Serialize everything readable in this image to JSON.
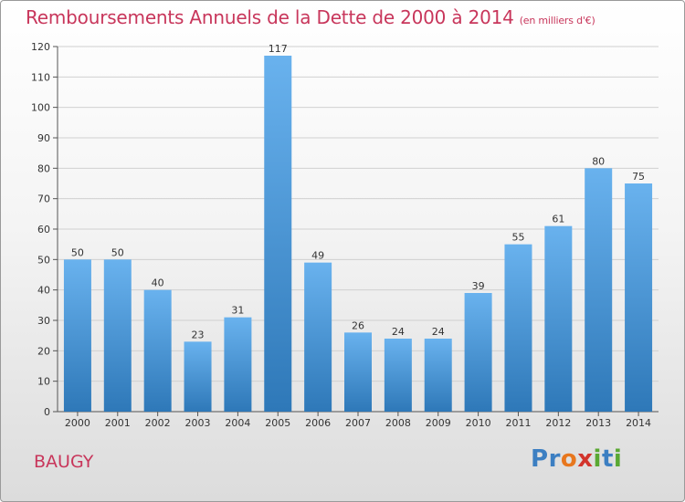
{
  "title": "Remboursements Annuels de la Dette de 2000 à 2014",
  "unit_note": "(en milliers d'€)",
  "place": "BAUGY",
  "brand": {
    "letters": [
      {
        "ch": "P",
        "color": "#3c7fc2"
      },
      {
        "ch": "r",
        "color": "#3c7fc2"
      },
      {
        "ch": "o",
        "color": "#e8771e"
      },
      {
        "ch": "x",
        "color": "#d2342c"
      },
      {
        "ch": "i",
        "color": "#5aa833"
      },
      {
        "ch": "t",
        "color": "#3c7fc2"
      },
      {
        "ch": "i",
        "color": "#5aa833"
      }
    ]
  },
  "chart_data": {
    "type": "bar",
    "categories": [
      "2000",
      "2001",
      "2002",
      "2003",
      "2004",
      "2005",
      "2006",
      "2007",
      "2008",
      "2009",
      "2010",
      "2011",
      "2012",
      "2013",
      "2014"
    ],
    "values": [
      50,
      50,
      40,
      23,
      31,
      117,
      49,
      26,
      24,
      24,
      39,
      55,
      61,
      80,
      75
    ],
    "ylim": [
      0,
      120
    ],
    "yticks": [
      0,
      10,
      20,
      30,
      40,
      50,
      60,
      70,
      80,
      90,
      100,
      110,
      120
    ],
    "grid": true,
    "bar_color_top": "#69b2ee",
    "bar_color_bottom": "#2e78b8"
  }
}
